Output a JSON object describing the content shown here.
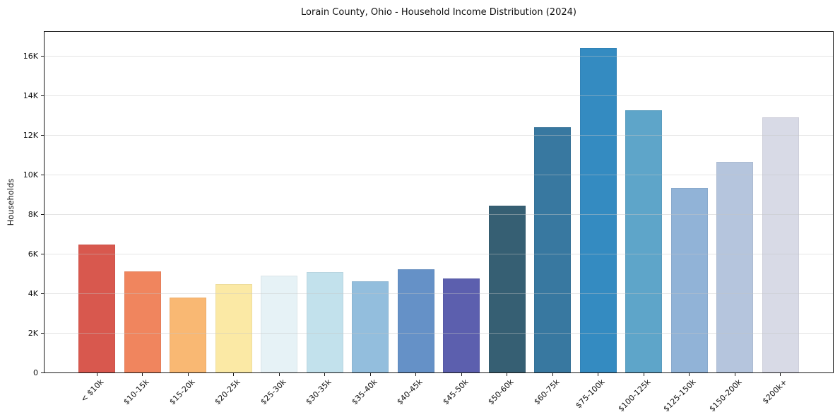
{
  "title": "Lorain County, Ohio - Household Income Distribution (2024)",
  "chart_data": {
    "type": "bar",
    "title": "Lorain County, Ohio - Household Income Distribution (2024)",
    "xlabel": "",
    "ylabel": "Households",
    "categories": [
      "< $10k",
      "$10-15k",
      "$15-20k",
      "$20-25k",
      "$25-30k",
      "$30-35k",
      "$35-40k",
      "$40-45k",
      "$45-50k",
      "$50-60k",
      "$60-75k",
      "$75-100k",
      "$100-125k",
      "$125-150k",
      "$150-200k",
      "$200k+"
    ],
    "values": [
      6450,
      5120,
      3800,
      4480,
      4900,
      5060,
      4600,
      5230,
      4760,
      8440,
      12390,
      16390,
      13240,
      9320,
      10650,
      12890
    ],
    "bar_colors": [
      "#d8584e",
      "#f0855e",
      "#f9b873",
      "#fbe9a5",
      "#e6f2f6",
      "#c2e1ec",
      "#93bedd",
      "#6591c7",
      "#5c5fae",
      "#365f73",
      "#3878a0",
      "#348bc1",
      "#5ea5c9",
      "#91b3d7",
      "#b5c5dd",
      "#d8dae6"
    ],
    "ylim": [
      0,
      17220
    ],
    "yticks": [
      {
        "value": 0,
        "label": "0"
      },
      {
        "value": 2000,
        "label": "2K"
      },
      {
        "value": 4000,
        "label": "4K"
      },
      {
        "value": 6000,
        "label": "6K"
      },
      {
        "value": 8000,
        "label": "8K"
      },
      {
        "value": 10000,
        "label": "10K"
      },
      {
        "value": 12000,
        "label": "12K"
      },
      {
        "value": 14000,
        "label": "14K"
      },
      {
        "value": 16000,
        "label": "16K"
      }
    ],
    "grid": "horizontal",
    "legend": "none",
    "background_color": "#ffffff",
    "axis_color": "#1a1a1a",
    "grid_color": "#e9e9e9",
    "x_label_rotation_deg": 45
  }
}
